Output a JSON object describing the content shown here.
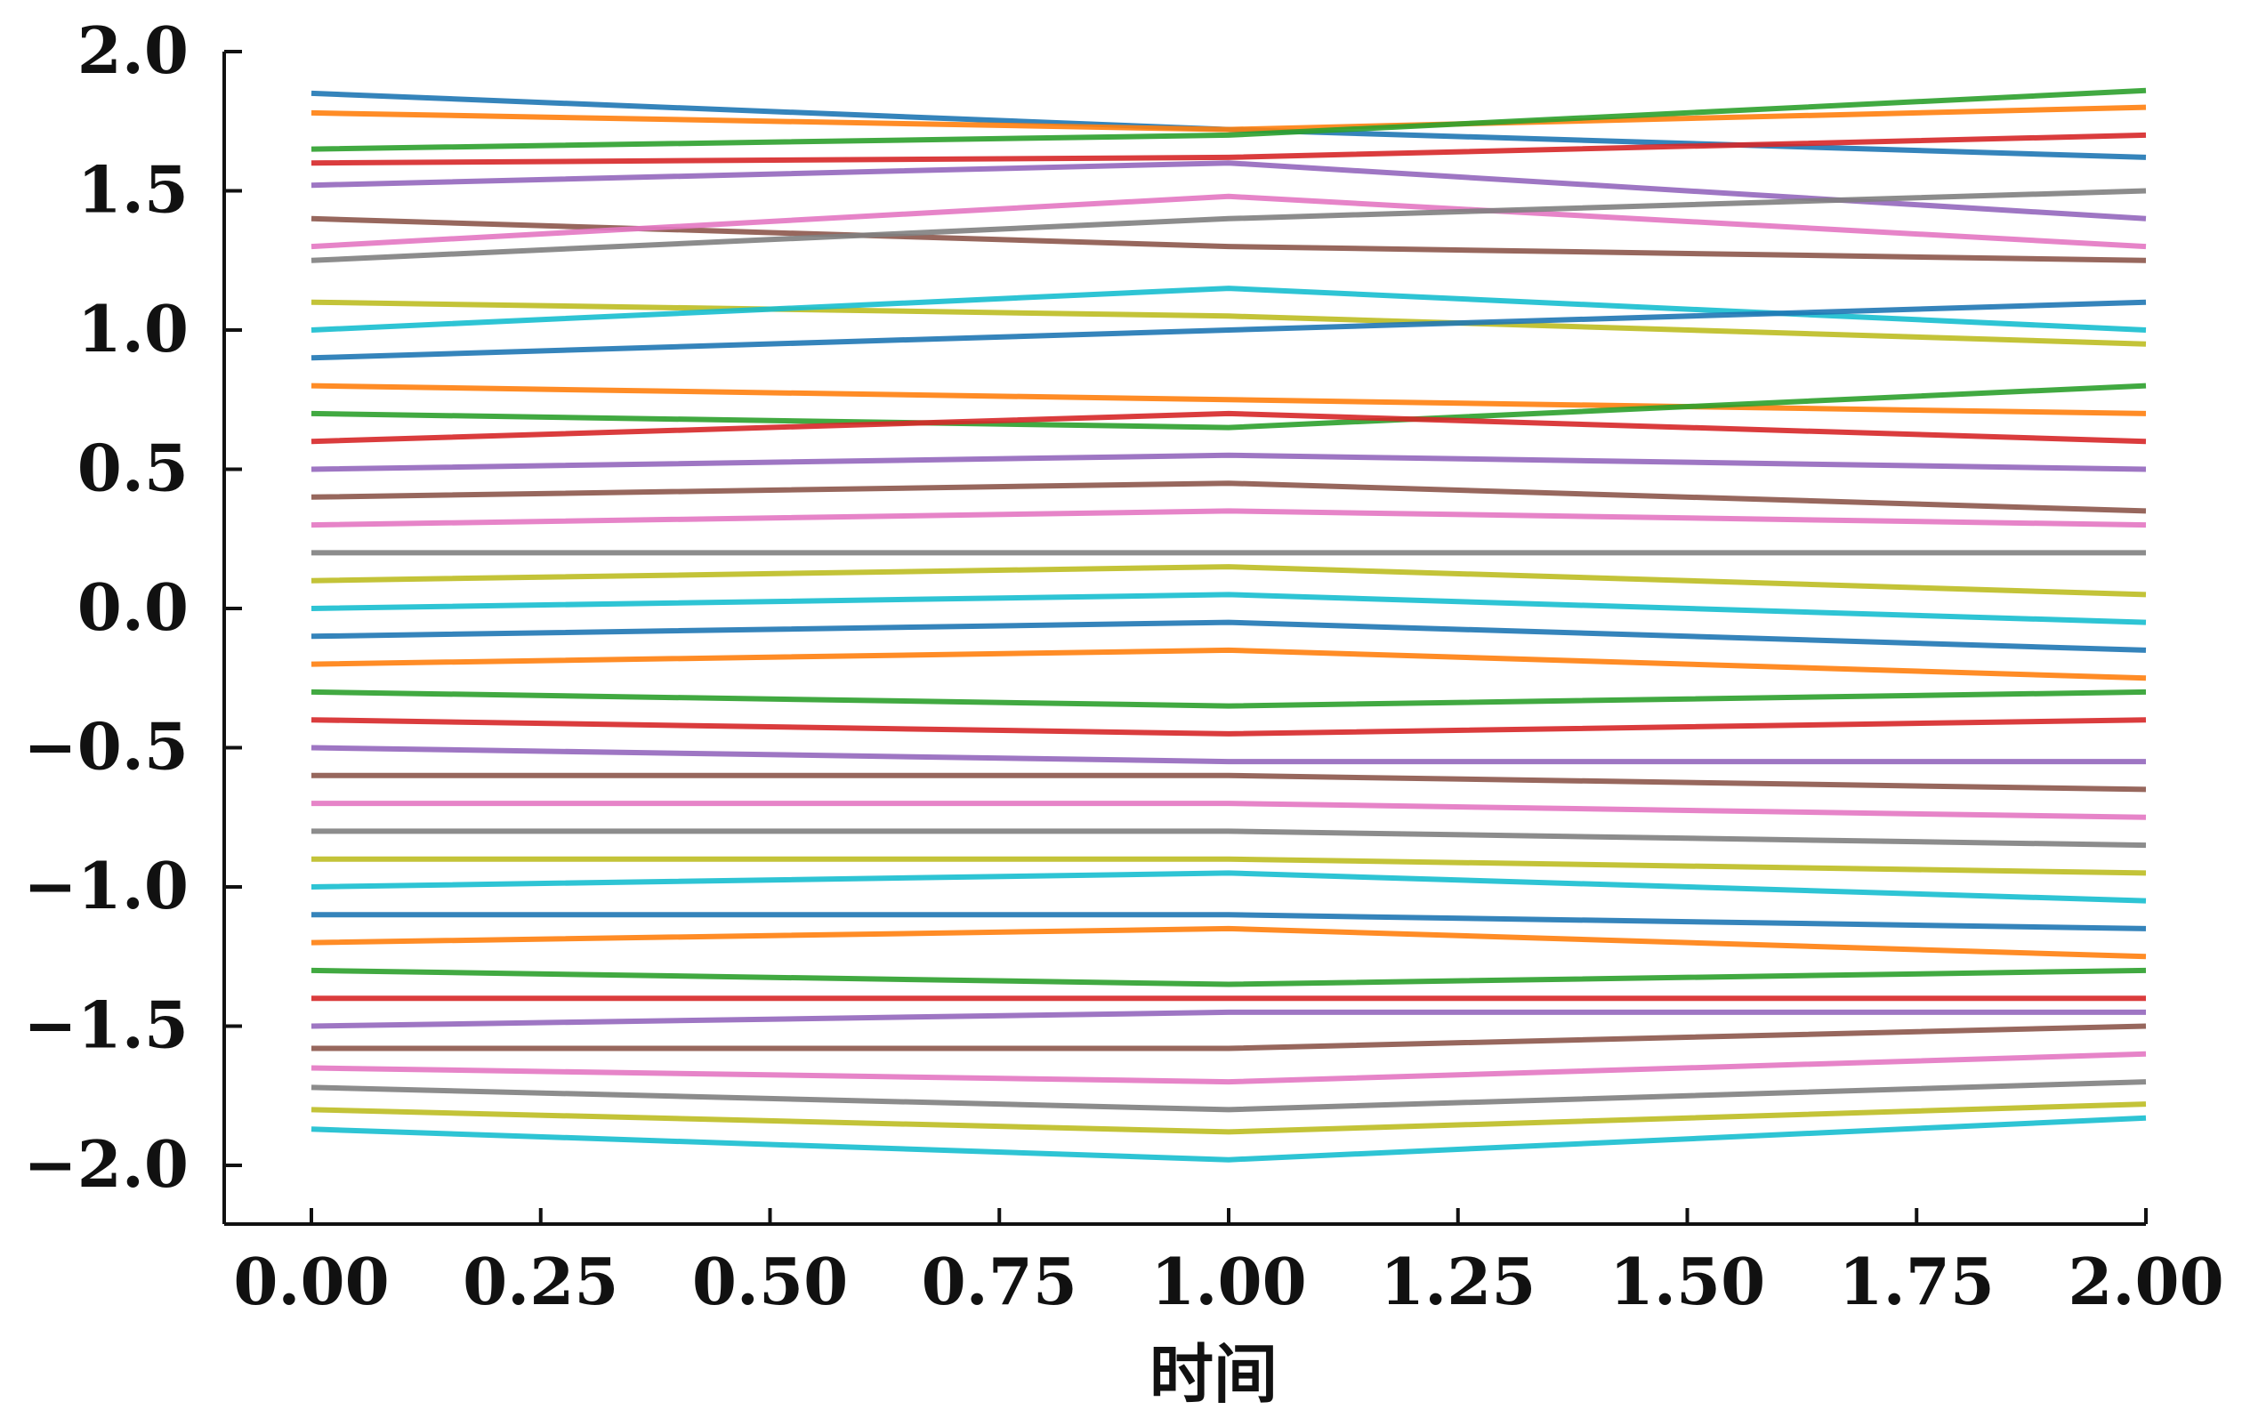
{
  "chart_data": {
    "type": "line",
    "title": "",
    "xlabel": "时间",
    "ylabel": "",
    "xlim": [
      0.0,
      2.0
    ],
    "ylim": [
      -2.0,
      2.0
    ],
    "xticks": [
      "0.00",
      "0.25",
      "0.50",
      "0.75",
      "1.00",
      "1.25",
      "1.50",
      "1.75",
      "2.00"
    ],
    "yticks": [
      "2.0",
      "1.5",
      "1.0",
      "0.5",
      "0.0",
      "−0.5",
      "−1.0",
      "−1.5",
      "−2.0"
    ],
    "grid": false,
    "legend": "none",
    "x": [
      0.0,
      1.0,
      2.0
    ],
    "series_colors": [
      "#1f77b4",
      "#ff7f0e",
      "#2ca02c",
      "#d62728",
      "#9467bd",
      "#8c564b",
      "#e377c2",
      "#7f7f7f",
      "#bcbd22",
      "#17becf"
    ],
    "series": [
      {
        "values": [
          1.85,
          1.72,
          1.62
        ]
      },
      {
        "values": [
          1.78,
          1.72,
          1.8
        ]
      },
      {
        "values": [
          1.65,
          1.7,
          1.86
        ]
      },
      {
        "values": [
          1.6,
          1.62,
          1.7
        ]
      },
      {
        "values": [
          1.52,
          1.6,
          1.4
        ]
      },
      {
        "values": [
          1.4,
          1.3,
          1.25
        ]
      },
      {
        "values": [
          1.3,
          1.48,
          1.3
        ]
      },
      {
        "values": [
          1.25,
          1.4,
          1.5
        ]
      },
      {
        "values": [
          1.1,
          1.05,
          0.95
        ]
      },
      {
        "values": [
          1.0,
          1.15,
          1.0
        ]
      },
      {
        "values": [
          0.9,
          1.0,
          1.1
        ]
      },
      {
        "values": [
          0.8,
          0.75,
          0.7
        ]
      },
      {
        "values": [
          0.7,
          0.65,
          0.8
        ]
      },
      {
        "values": [
          0.6,
          0.7,
          0.6
        ]
      },
      {
        "values": [
          0.5,
          0.55,
          0.5
        ]
      },
      {
        "values": [
          0.4,
          0.45,
          0.35
        ]
      },
      {
        "values": [
          0.3,
          0.35,
          0.3
        ]
      },
      {
        "values": [
          0.2,
          0.2,
          0.2
        ]
      },
      {
        "values": [
          0.1,
          0.15,
          0.05
        ]
      },
      {
        "values": [
          0.0,
          0.05,
          -0.05
        ]
      },
      {
        "values": [
          -0.1,
          -0.05,
          -0.15
        ]
      },
      {
        "values": [
          -0.2,
          -0.15,
          -0.25
        ]
      },
      {
        "values": [
          -0.3,
          -0.35,
          -0.3
        ]
      },
      {
        "values": [
          -0.4,
          -0.45,
          -0.4
        ]
      },
      {
        "values": [
          -0.5,
          -0.55,
          -0.55
        ]
      },
      {
        "values": [
          -0.6,
          -0.6,
          -0.65
        ]
      },
      {
        "values": [
          -0.7,
          -0.7,
          -0.75
        ]
      },
      {
        "values": [
          -0.8,
          -0.8,
          -0.85
        ]
      },
      {
        "values": [
          -0.9,
          -0.9,
          -0.95
        ]
      },
      {
        "values": [
          -1.0,
          -0.95,
          -1.05
        ]
      },
      {
        "values": [
          -1.1,
          -1.1,
          -1.15
        ]
      },
      {
        "values": [
          -1.2,
          -1.15,
          -1.25
        ]
      },
      {
        "values": [
          -1.3,
          -1.35,
          -1.3
        ]
      },
      {
        "values": [
          -1.4,
          -1.4,
          -1.4
        ]
      },
      {
        "values": [
          -1.5,
          -1.45,
          -1.45
        ]
      },
      {
        "values": [
          -1.58,
          -1.58,
          -1.5
        ]
      },
      {
        "values": [
          -1.65,
          -1.7,
          -1.6
        ]
      },
      {
        "values": [
          -1.72,
          -1.8,
          -1.7
        ]
      },
      {
        "values": [
          -1.8,
          -1.88,
          -1.78
        ]
      },
      {
        "values": [
          -1.87,
          -1.98,
          -1.83
        ]
      }
    ]
  }
}
